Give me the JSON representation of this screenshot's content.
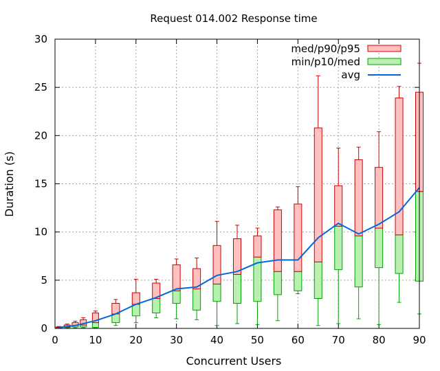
{
  "chart_data": {
    "type": "box",
    "title": "Request 014.002 Response time",
    "xlabel": "Concurrent Users",
    "ylabel": "Duration (s)",
    "xlim": [
      0,
      90
    ],
    "ylim": [
      0,
      30
    ],
    "xticks": [
      "0",
      "10",
      "20",
      "30",
      "40",
      "50",
      "60",
      "70",
      "80",
      "90"
    ],
    "yticks": [
      "0",
      "5",
      "10",
      "15",
      "20",
      "25",
      "30"
    ],
    "grid": true,
    "legend_position": "top-right",
    "legend": {
      "upper": "med/p90/p95",
      "lower": "min/p10/med",
      "avg": "avg"
    },
    "colors": {
      "upper_fill": "#ffc0c0",
      "upper_stroke": "#cc0000",
      "lower_fill": "#b8f0b0",
      "lower_stroke": "#00a000",
      "avg": "#0066dd",
      "grid": "#a0a0a0"
    },
    "points": [
      {
        "x": 1,
        "min": 0.05,
        "p10": 0.05,
        "med": 0.1,
        "p90": 0.15,
        "p95": 0.2,
        "avg": 0.1
      },
      {
        "x": 3,
        "min": 0.05,
        "p10": 0.1,
        "med": 0.15,
        "p90": 0.35,
        "p95": 0.45,
        "avg": 0.2
      },
      {
        "x": 5,
        "min": 0.05,
        "p10": 0.15,
        "med": 0.3,
        "p90": 0.6,
        "p95": 0.75,
        "avg": 0.3
      },
      {
        "x": 7,
        "min": 0.05,
        "p10": 0.15,
        "med": 0.35,
        "p90": 0.9,
        "p95": 1.1,
        "avg": 0.5
      },
      {
        "x": 10,
        "min": 0.05,
        "p10": 0.1,
        "med": 0.6,
        "p90": 1.6,
        "p95": 1.8,
        "avg": 0.8
      },
      {
        "x": 15,
        "min": 0.3,
        "p10": 0.6,
        "med": 1.5,
        "p90": 2.6,
        "p95": 3.0,
        "avg": 1.5
      },
      {
        "x": 20,
        "min": 0.6,
        "p10": 1.3,
        "med": 2.5,
        "p90": 3.7,
        "p95": 5.1,
        "avg": 2.5
      },
      {
        "x": 25,
        "min": 1.1,
        "p10": 1.6,
        "med": 3.1,
        "p90": 4.7,
        "p95": 5.1,
        "avg": 3.2
      },
      {
        "x": 30,
        "min": 1.0,
        "p10": 2.6,
        "med": 3.9,
        "p90": 6.6,
        "p95": 7.2,
        "avg": 4.1
      },
      {
        "x": 35,
        "min": 0.9,
        "p10": 1.9,
        "med": 4.1,
        "p90": 6.2,
        "p95": 7.3,
        "avg": 4.3
      },
      {
        "x": 40,
        "min": 0.3,
        "p10": 2.8,
        "med": 4.6,
        "p90": 8.6,
        "p95": 11.1,
        "avg": 5.5
      },
      {
        "x": 45,
        "min": 0.5,
        "p10": 2.6,
        "med": 5.6,
        "p90": 9.3,
        "p95": 10.7,
        "avg": 5.9
      },
      {
        "x": 50,
        "min": 0.4,
        "p10": 2.8,
        "med": 7.4,
        "p90": 9.6,
        "p95": 10.4,
        "avg": 6.8
      },
      {
        "x": 55,
        "min": 0.8,
        "p10": 3.5,
        "med": 5.9,
        "p90": 12.3,
        "p95": 12.6,
        "avg": 7.1
      },
      {
        "x": 60,
        "min": 3.6,
        "p10": 3.9,
        "med": 5.9,
        "p90": 12.9,
        "p95": 14.7,
        "avg": 7.1
      },
      {
        "x": 65,
        "min": 0.3,
        "p10": 3.1,
        "med": 6.9,
        "p90": 20.8,
        "p95": 26.2,
        "avg": 9.4
      },
      {
        "x": 70,
        "min": 0.5,
        "p10": 6.1,
        "med": 10.6,
        "p90": 14.8,
        "p95": 18.7,
        "avg": 10.9
      },
      {
        "x": 75,
        "min": 1.0,
        "p10": 4.3,
        "med": 9.6,
        "p90": 17.5,
        "p95": 18.8,
        "avg": 9.8
      },
      {
        "x": 80,
        "min": 0.4,
        "p10": 6.3,
        "med": 10.4,
        "p90": 16.7,
        "p95": 20.4,
        "avg": 10.8
      },
      {
        "x": 85,
        "min": 2.7,
        "p10": 5.7,
        "med": 9.7,
        "p90": 23.9,
        "p95": 25.1,
        "avg": 12.1
      },
      {
        "x": 90,
        "min": 1.5,
        "p10": 4.9,
        "med": 14.2,
        "p90": 24.5,
        "p95": 27.5,
        "avg": 14.6
      }
    ]
  }
}
